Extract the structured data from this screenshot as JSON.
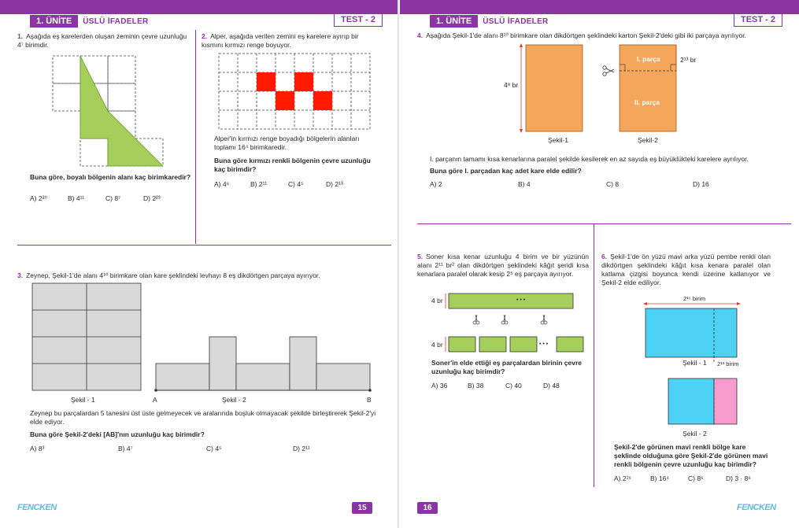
{
  "header": {
    "unit": "1. ÜNİTE",
    "topic": "ÜSLÜ İFADELER",
    "test": "TEST - 2"
  },
  "footer": {
    "logo": "FENCKEN",
    "left_page_number": "15",
    "right_page_number": "16"
  },
  "q1": {
    "number": "1.",
    "text": "Aşağıda eş karelerden oluşan zeminin çevre uzunluğu 4⁷ birimdir.",
    "question": "Buna göre, boyalı bölgenin alanı kaç birimkaredir?",
    "options": [
      "A) 2²⁰",
      "B) 4¹¹",
      "C) 8⁷",
      "D) 2²³"
    ]
  },
  "q2": {
    "number": "2.",
    "text": "Alper, aşağıda verilen zemini eş karelere ayırıp bir kısmını kırmızı renge boyuyor.",
    "text2": "Alper'in kırmızı renge boyadığı bölgelerin alanları toplamı 16⁴ birimkaredir.",
    "question": "Buna göre kırmızı renkli bölgenin çevre uzunluğu kaç birimdir?",
    "options": [
      "A) 4⁶",
      "B) 2¹¹",
      "C) 4⁵",
      "D) 2¹³"
    ]
  },
  "q3": {
    "number": "3.",
    "text": "Zeynep, Şekil-1'de alanı 4¹⁰ birimkare olan kare şeklindeki levhayı 8 eş dikdörtgen parçaya ayırıyor.",
    "fig1_label": "Şekil - 1",
    "fig2_label": "Şekil - 2",
    "point_a": "A",
    "point_b": "B",
    "text2": "Zeynep bu parçalardan 5 tanesini üst üste gelmeyecek ve aralarında boşluk olmayacak şekilde birleştirerek Şekil-2'yi elde ediyor.",
    "question": "Buna göre Şekil-2'deki [AB]'nın uzunluğu kaç birimdir?",
    "options": [
      "A) 8³",
      "B) 4⁷",
      "C) 4⁵",
      "D) 2¹¹"
    ]
  },
  "q4": {
    "number": "4.",
    "text": "Aşağıda Şekil-1'de alanı 8¹⁰ birimkare olan dikdörtgen şeklindeki karton Şekil-2'deki gibi iki parçaya ayrılıyor.",
    "height_label": "4⁸ br",
    "part1_label": "I. parça",
    "part2_label": "II. parça",
    "width_label": "2¹³ br",
    "fig1_label": "Şekil-1",
    "fig2_label": "Şekil-2",
    "text2": "I. parçanın tamamı kısa kenarlarına paralel şekilde kesilerek en az sayıda eş büyüklükteki karelere ayrılıyor.",
    "question": "Buna göre I. parçadan kaç adet kare elde edilir?",
    "options": [
      "A) 2",
      "B) 4",
      "C) 8",
      "D) 16"
    ]
  },
  "q5": {
    "number": "5.",
    "text": "Soner kısa kenar uzunluğu 4 birim ve bir yüzünün alanı 2¹¹ br² olan dikdörtgen şeklindeki kâğıt şeridi kısa kenarlara paralel olarak kesip 2⁵ eş parçaya ayırıyor.",
    "strip_label_top": "4 br",
    "strip_label_bottom": "4 br",
    "dots": "• • •",
    "question": "Soner'in elde ettiği eş parçalardan birinin çevre uzunluğu kaç birimdir?",
    "options": [
      "A) 36",
      "B) 38",
      "C) 40",
      "D) 48"
    ]
  },
  "q6": {
    "number": "6.",
    "text": "Şekil-1'de ön yüzü mavi arka yüzü pembe renkli olan dikdörtgen şeklindeki kâğıt kısa kenara paralel olan katlama çizgisi boyunca kendi üzerine katlanıyor ve Şekil-2 elde ediliyor.",
    "width_label": "2¹⁵ birim",
    "fold_label": "2¹³ birim",
    "fig1_label": "Şekil - 1",
    "fig2_label": "Şekil - 2",
    "question": "Şekil-2'de görünen mavi renkli bölge kare şeklinde olduğuna göre Şekil-2'de görünen mavi renkli bölgenin çevre uzunluğu kaç birimdir?",
    "options": [
      "A) 2¹⁵",
      "B) 16⁴",
      "C) 8⁶",
      "D) 3 · 8⁶"
    ]
  },
  "colors": {
    "accent": "#8a35a3",
    "green": "#a5cf5a",
    "red": "#ff1a00",
    "orange": "#f4a65b",
    "blue": "#4dd2f5",
    "pink": "#f79ccc",
    "gray": "#d9d9d9"
  }
}
